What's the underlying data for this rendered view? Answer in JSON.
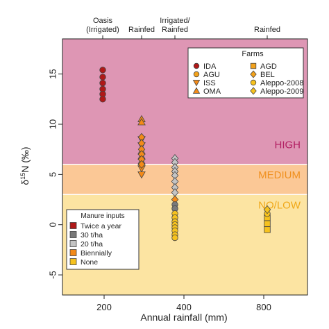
{
  "chart_data": {
    "type": "scatter",
    "xlabel": "Annual rainfall (mm)",
    "ylabel": "δ15N (‰)",
    "ylabel_main": "δ",
    "ylabel_sup": "15",
    "ylabel_rest": "N (‰)",
    "xlim": [
      115,
      905
    ],
    "ylim": [
      -7,
      18.5
    ],
    "x_ticks": [
      {
        "value": 200,
        "label": "200"
      },
      {
        "value": 400,
        "label": "400"
      },
      {
        "value": 800,
        "label": "800"
      }
    ],
    "y_ticks": [
      {
        "value": -5,
        "label": "-5"
      },
      {
        "value": 0,
        "label": "0"
      },
      {
        "value": 5,
        "label": "5"
      },
      {
        "value": 10,
        "label": "10"
      },
      {
        "value": 15,
        "label": "15"
      }
    ],
    "top_labels": [
      {
        "x": 190,
        "lines": [
          "Oasis",
          "(Irrigated)"
        ]
      },
      {
        "x": 300,
        "lines": [
          "Rainfed"
        ]
      },
      {
        "x": 370,
        "lines": [
          "Irrigated/",
          "Rainfed"
        ]
      },
      {
        "x": 760,
        "lines": [
          "Rainfed"
        ]
      }
    ],
    "bands": [
      {
        "label": "HIGH",
        "from": 6,
        "to": 18.5,
        "color": "#de96b4",
        "label_color": "#b21e62",
        "label_y": 7.6
      },
      {
        "label": "MEDIUM",
        "from": 3,
        "to": 6,
        "color": "#fbc896",
        "label_color": "#f0901e",
        "label_y": 4.6
      },
      {
        "label": "NO/LOW",
        "from": -7,
        "to": 3,
        "color": "#fce4a2",
        "label_color": "#f0a818",
        "label_y": 1.6
      }
    ],
    "series": [
      {
        "name": "IDA",
        "shape": "circle",
        "points": [
          {
            "x": 190,
            "y": 15.4,
            "input": "twice"
          },
          {
            "x": 190,
            "y": 14.7,
            "input": "twice"
          },
          {
            "x": 190,
            "y": 14.1,
            "input": "twice"
          },
          {
            "x": 190,
            "y": 13.5,
            "input": "twice"
          },
          {
            "x": 190,
            "y": 13.0,
            "input": "twice"
          },
          {
            "x": 190,
            "y": 12.5,
            "input": "twice"
          }
        ]
      },
      {
        "name": "ISS",
        "shape": "triangle-down",
        "points": [
          {
            "x": 300,
            "y": 8.5,
            "input": "biennially"
          },
          {
            "x": 300,
            "y": 7.9,
            "input": "biennially"
          },
          {
            "x": 300,
            "y": 5.6,
            "input": "biennially"
          },
          {
            "x": 300,
            "y": 5.0,
            "input": "biennially"
          }
        ]
      },
      {
        "name": "OMA",
        "shape": "triangle-up",
        "points": [
          {
            "x": 300,
            "y": 10.5,
            "input": "biennially"
          },
          {
            "x": 300,
            "y": 10.2,
            "input": "biennially"
          },
          {
            "x": 300,
            "y": 7.3,
            "input": "biennially"
          },
          {
            "x": 300,
            "y": 6.8,
            "input": "biennially"
          },
          {
            "x": 300,
            "y": 6.3,
            "input": "biennially"
          }
        ]
      },
      {
        "name": "BEL",
        "shape": "diamond",
        "points": [
          {
            "x": 300,
            "y": 8.7,
            "input": "biennially"
          },
          {
            "x": 300,
            "y": 8.1,
            "input": "biennially"
          },
          {
            "x": 300,
            "y": 7.5,
            "input": "biennially"
          },
          {
            "x": 300,
            "y": 7.0,
            "input": "biennially"
          },
          {
            "x": 300,
            "y": 6.5,
            "input": "biennially"
          },
          {
            "x": 300,
            "y": 6.0,
            "input": "biennially"
          },
          {
            "x": 370,
            "y": 6.6,
            "input": "20tha"
          },
          {
            "x": 370,
            "y": 6.2,
            "input": "20tha"
          },
          {
            "x": 370,
            "y": 5.7,
            "input": "20tha"
          },
          {
            "x": 370,
            "y": 5.3,
            "input": "20tha"
          },
          {
            "x": 370,
            "y": 4.9,
            "input": "20tha"
          },
          {
            "x": 370,
            "y": 4.3,
            "input": "20tha"
          },
          {
            "x": 370,
            "y": 3.7,
            "input": "20tha"
          },
          {
            "x": 370,
            "y": 3.2,
            "input": "20tha"
          },
          {
            "x": 370,
            "y": 2.5,
            "input": "biennially"
          }
        ]
      },
      {
        "name": "AGU",
        "shape": "circle",
        "points": [
          {
            "x": 370,
            "y": 2.0,
            "input": "30tha"
          },
          {
            "x": 370,
            "y": 1.6,
            "input": "30tha"
          },
          {
            "x": 370,
            "y": 1.1,
            "input": "none"
          },
          {
            "x": 370,
            "y": 0.7,
            "input": "none"
          },
          {
            "x": 370,
            "y": 0.3,
            "input": "none"
          },
          {
            "x": 370,
            "y": 0.0,
            "input": "none"
          },
          {
            "x": 370,
            "y": -0.3,
            "input": "none"
          },
          {
            "x": 370,
            "y": -0.6,
            "input": "none"
          },
          {
            "x": 370,
            "y": -1.0,
            "input": "none"
          },
          {
            "x": 370,
            "y": -1.3,
            "input": "none"
          }
        ]
      },
      {
        "name": "AGD",
        "shape": "square",
        "points": [
          {
            "x": 760,
            "y": 0.7,
            "input": "none"
          },
          {
            "x": 760,
            "y": 0.1,
            "input": "none"
          },
          {
            "x": 760,
            "y": -0.5,
            "input": "none"
          }
        ]
      },
      {
        "name": "Aleppo-2008",
        "shape": "circle",
        "points": [
          {
            "x": 760,
            "y": 1.1,
            "input": "none"
          }
        ]
      },
      {
        "name": "Aleppo-2009",
        "shape": "diamond",
        "points": [
          {
            "x": 760,
            "y": 1.5,
            "input": "none"
          }
        ]
      }
    ],
    "farm_legend": {
      "title": "Farms",
      "entries": [
        {
          "name": "IDA",
          "shape": "circle",
          "color": "#b01818"
        },
        {
          "name": "AGD",
          "shape": "square",
          "color": "#f3a21b"
        },
        {
          "name": "AGU",
          "shape": "circle",
          "color": "#f3a21b"
        },
        {
          "name": "BEL",
          "shape": "diamond",
          "color": "#f3a21b"
        },
        {
          "name": "ISS",
          "shape": "triangle-down",
          "color": "#f38a18"
        },
        {
          "name": "Aleppo-2008",
          "shape": "circle",
          "color": "#f6c21e"
        },
        {
          "name": "OMA",
          "shape": "triangle-up",
          "color": "#f38a18"
        },
        {
          "name": "Aleppo-2009",
          "shape": "diamond",
          "color": "#f6c21e"
        }
      ]
    },
    "input_legend": {
      "title": "Manure inputs",
      "entries": [
        {
          "key": "twice",
          "label": "Twice a year",
          "color": "#b01818"
        },
        {
          "key": "30tha",
          "label": "30 t/ha",
          "color": "#7a7a7a"
        },
        {
          "key": "20tha",
          "label": "20 t/ha",
          "color": "#c4c4c4"
        },
        {
          "key": "biennially",
          "label": "Biennially",
          "color": "#f38a18"
        },
        {
          "key": "none",
          "label": "None",
          "color": "#f6c21e"
        }
      ]
    }
  }
}
